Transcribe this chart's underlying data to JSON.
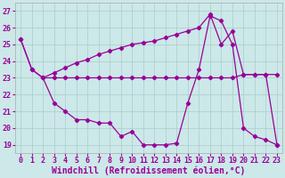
{
  "bg_color": "#cce8e8",
  "line_color": "#990099",
  "grid_color": "#aacccc",
  "xlabel": "Windchill (Refroidissement éolien,°C)",
  "ylim": [
    18.5,
    27.5
  ],
  "xlim": [
    -0.5,
    23.5
  ],
  "yticks": [
    19,
    20,
    21,
    22,
    23,
    24,
    25,
    26,
    27
  ],
  "xticks": [
    0,
    1,
    2,
    3,
    4,
    5,
    6,
    7,
    8,
    9,
    10,
    11,
    12,
    13,
    14,
    15,
    16,
    17,
    18,
    19,
    20,
    21,
    22,
    23
  ],
  "tick_fontsize": 6.0,
  "xlabel_fontsize": 7.0,
  "marker": "D",
  "markersize": 2.2,
  "linewidth": 0.9,
  "line_a_x": [
    0,
    1,
    2,
    3,
    4,
    5,
    6,
    7,
    8,
    9,
    10,
    11,
    12,
    13,
    14,
    15,
    16,
    17,
    18,
    19,
    20,
    21,
    22,
    23
  ],
  "line_a_y": [
    25.3,
    23.5,
    23.0,
    23.3,
    23.6,
    23.9,
    24.1,
    24.4,
    24.6,
    24.8,
    25.0,
    25.1,
    25.2,
    25.4,
    25.6,
    25.8,
    26.0,
    26.8,
    25.0,
    25.8,
    23.2,
    23.2,
    23.2,
    23.2
  ],
  "line_b_x": [
    0,
    1,
    2,
    3,
    4,
    5,
    6,
    7,
    8,
    9,
    10,
    11,
    12,
    13,
    14,
    15,
    16,
    17,
    18,
    19,
    20,
    21,
    22,
    23
  ],
  "line_b_y": [
    25.3,
    23.5,
    23.0,
    23.0,
    23.0,
    23.0,
    23.0,
    23.0,
    23.0,
    23.0,
    23.0,
    23.0,
    23.0,
    23.0,
    23.0,
    23.0,
    23.0,
    23.0,
    23.0,
    23.0,
    23.2,
    23.2,
    23.2,
    19.0
  ],
  "line_c_x": [
    2,
    3,
    4,
    5,
    6,
    7,
    8,
    9,
    10,
    11,
    12,
    13,
    14,
    15,
    16,
    17,
    18,
    19,
    20,
    21,
    22,
    23
  ],
  "line_c_y": [
    23.0,
    21.5,
    21.0,
    20.5,
    20.5,
    20.3,
    20.3,
    19.5,
    19.8,
    19.0,
    19.0,
    19.0,
    19.1,
    21.5,
    23.5,
    26.7,
    26.4,
    25.0,
    20.0,
    19.5,
    19.3,
    19.0
  ]
}
